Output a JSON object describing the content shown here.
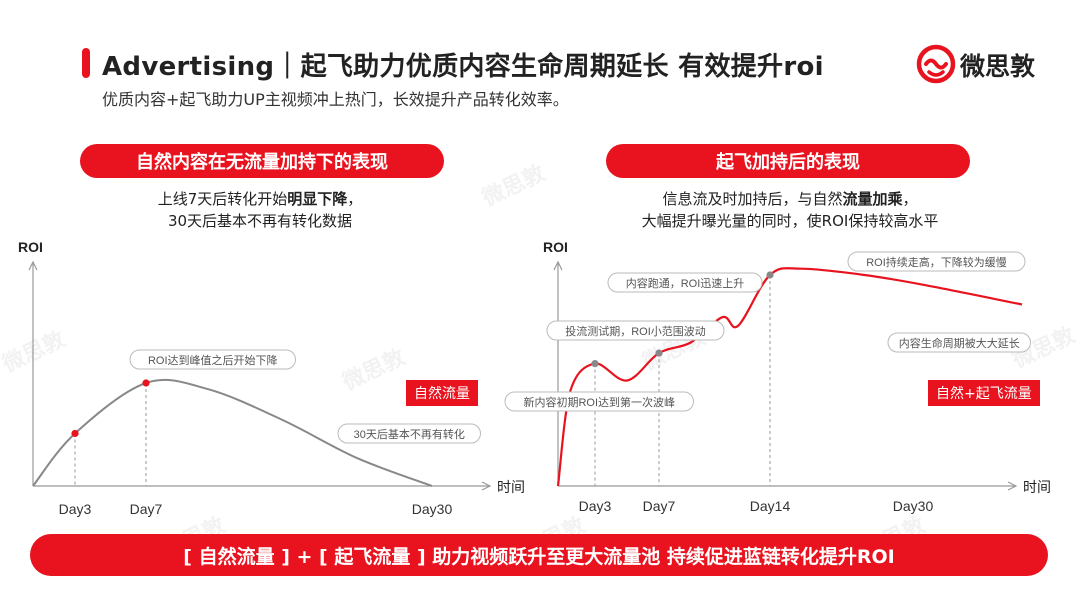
{
  "header": {
    "title": "Advertising｜起飞助力优质内容生命周期延长 有效提升roi",
    "subtitle": "优质内容+起飞助力UP主视频冲上热门，长效提升产品转化效率。",
    "logo_text": "微思敦",
    "accent_color": "#e8131f"
  },
  "watermark": "微思敦",
  "left_panel": {
    "pill": "自然内容在无流量加持下的表现",
    "desc_line1_a": "上线7天后转化开始",
    "desc_line1_bold": "明显下降",
    "desc_line1_b": "，",
    "desc_line2": "30天后基本不再有转化数据",
    "tag": "自然流量"
  },
  "right_panel": {
    "pill": "起飞加持后的表现",
    "desc_line1_a": "信息流及时加持后，与自然",
    "desc_line1_bold": "流量加乘",
    "desc_line1_b": "，",
    "desc_line2": "大幅提升曝光量的同时，使ROI保持较高水平",
    "tag": "自然+起飞流量"
  },
  "banner": "[ 自然流量 ] + [ 起飞流量 ] 助力视频跃升至更大流量池  持续促进蓝链转化提升ROI",
  "chart_data": [
    {
      "type": "line",
      "ylabel": "ROI",
      "xlabel": "时间",
      "tick_labels": [
        "Day3",
        "Day7",
        "Day30"
      ],
      "x": [
        0,
        3,
        7,
        12,
        18,
        24,
        30
      ],
      "y": [
        0,
        0.51,
        1.0,
        0.94,
        0.64,
        0.27,
        0
      ],
      "marked_points": [
        {
          "x": 3,
          "y": 0.51,
          "label": "Day3"
        },
        {
          "x": 7,
          "y": 1.0,
          "label": "Day7"
        }
      ],
      "annotations": [
        "ROI达到峰值之后开始下降",
        "30天后基本不再有转化"
      ],
      "series": [
        {
          "name": "自然流量"
        }
      ],
      "line_color": "#888888",
      "marker_color": "#e8131f"
    },
    {
      "type": "line",
      "ylabel": "ROI",
      "xlabel": "时间",
      "tick_labels": [
        "Day3",
        "Day7",
        "Day14",
        "Day30"
      ],
      "x": [
        0,
        1,
        3,
        5,
        7,
        9,
        11,
        12,
        14,
        16,
        20,
        24,
        30
      ],
      "y": [
        0,
        0.45,
        0.58,
        0.5,
        0.63,
        0.68,
        0.8,
        0.76,
        1.0,
        1.03,
        1.0,
        0.95,
        0.86
      ],
      "marked_points": [
        {
          "x": 3,
          "y": 0.58,
          "label": "Day3"
        },
        {
          "x": 7,
          "y": 0.63,
          "label": "Day7"
        },
        {
          "x": 14,
          "y": 1.0,
          "label": "Day14"
        }
      ],
      "annotations": [
        "ROI持续走高，下降较为缓慢",
        "内容跑通，ROI迅速上升",
        "投流测试期，ROI小范围波动",
        "新内容初期ROI达到第一次波峰",
        "内容生命周期被大大延长"
      ],
      "series": [
        {
          "name": "自然+起飞流量"
        }
      ],
      "line_color": "#e8131f",
      "marker_color": "#888888"
    }
  ]
}
